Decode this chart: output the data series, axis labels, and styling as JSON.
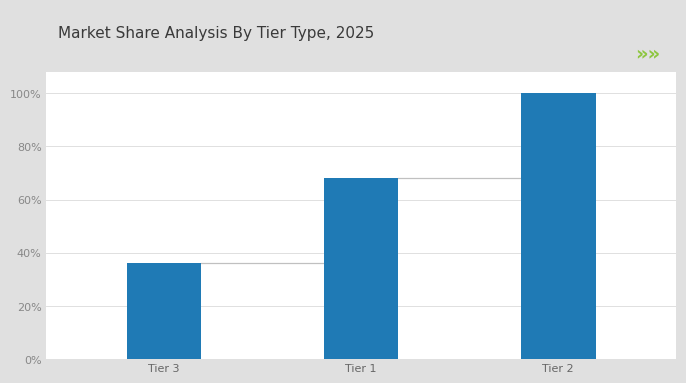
{
  "title": "Market Share Analysis By Tier Type, 2025",
  "categories": [
    "Tier 3",
    "Tier 1",
    "Tier 2"
  ],
  "values": [
    36,
    68,
    100
  ],
  "bar_color": "#1F7AB5",
  "connector_color": "#C0C0C0",
  "background_outer": "#E0E0E0",
  "background_title": "#FFFFFF",
  "background_chart": "#FFFFFF",
  "title_color": "#3A3A3A",
  "title_fontsize": 11,
  "ylim": [
    0,
    108
  ],
  "yticks": [
    0,
    20,
    40,
    60,
    80,
    100
  ],
  "green_line_color": "#8DC63F",
  "arrow_color": "#8DC63F",
  "tick_label_fontsize": 8,
  "bar_width": 0.38,
  "x_positions": [
    0,
    1,
    2
  ]
}
